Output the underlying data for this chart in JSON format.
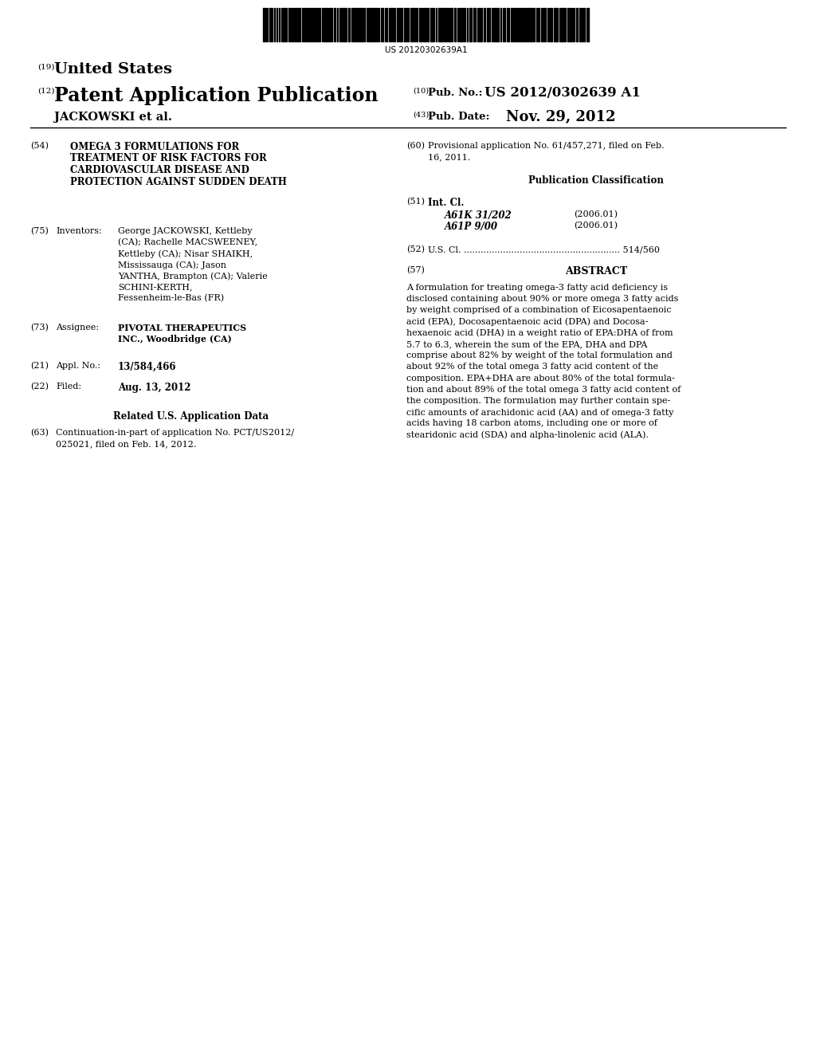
{
  "bg_color": "#ffffff",
  "barcode_text": "US 20120302639A1",
  "label_19": "(19)",
  "united_states": "United States",
  "label_12": "(12)",
  "patent_app_pub": "Patent Application Publication",
  "label_10": "(10)",
  "pub_no_label": "Pub. No.:",
  "pub_no_value": "US 2012/0302639 A1",
  "applicant_name": "JACKOWSKI et al.",
  "label_43": "(43)",
  "pub_date_label": "Pub. Date:",
  "pub_date_value": "Nov. 29, 2012",
  "label_54": "(54)",
  "title_lines": [
    "OMEGA 3 FORMULATIONS FOR",
    "TREATMENT OF RISK FACTORS FOR",
    "CARDIOVASCULAR DISEASE AND",
    "PROTECTION AGAINST SUDDEN DEATH"
  ],
  "label_75": "(75)",
  "inventors_label": "Inventors:",
  "inventors_lines": [
    "George JACKOWSKI, Kettleby",
    "(CA); Rachelle MACSWEENEY,",
    "Kettleby (CA); Nisar SHAIKH,",
    "Mississauga (CA); Jason",
    "YANTHA, Brampton (CA); Valerie",
    "SCHINI-KERTH,",
    "Fessenheim-le-Bas (FR)"
  ],
  "label_73": "(73)",
  "assignee_label": "Assignee:",
  "assignee_line1": "PIVOTAL THERAPEUTICS",
  "assignee_line2": "INC., Woodbridge (CA)",
  "label_21": "(21)",
  "appl_no_label": "Appl. No.:",
  "appl_no_value": "13/584,466",
  "label_22": "(22)",
  "filed_label": "Filed:",
  "filed_value": "Aug. 13, 2012",
  "related_us_label": "Related U.S. Application Data",
  "label_63": "(63)",
  "continuation_line1": "Continuation-in-part of application No. PCT/US2012/",
  "continuation_line2": "025021, filed on Feb. 14, 2012.",
  "label_60": "(60)",
  "prov_line1": "Provisional application No. 61/457,271, filed on Feb.",
  "prov_line2": "16, 2011.",
  "pub_class_label": "Publication Classification",
  "label_51": "(51)",
  "int_cl_label": "Int. Cl.",
  "int_cl_1": "A61K 31/202",
  "int_cl_1_year": "(2006.01)",
  "int_cl_2": "A61P 9/00",
  "int_cl_2_year": "(2006.01)",
  "label_52": "(52)",
  "us_cl_text": "U.S. Cl. ........................................................ 514/560",
  "label_57": "(57)",
  "abstract_label": "ABSTRACT",
  "abstract_lines": [
    "A formulation for treating omega-3 fatty acid deficiency is",
    "disclosed containing about 90% or more omega 3 fatty acids",
    "by weight comprised of a combination of Eicosapentaenoic",
    "acid (EPA), Docosapentaenoic acid (DPA) and Docosa-",
    "hexaenoic acid (DHA) in a weight ratio of EPA:DHA of from",
    "5.7 to 6.3, wherein the sum of the EPA, DHA and DPA",
    "comprise about 82% by weight of the total formulation and",
    "about 92% of the total omega 3 fatty acid content of the",
    "composition. EPA+DHA are about 80% of the total formula-",
    "tion and about 89% of the total omega 3 fatty acid content of",
    "the composition. The formulation may further contain spe-",
    "cific amounts of arachidonic acid (AA) and of omega-3 fatty",
    "acids having 18 carbon atoms, including one or more of",
    "stearidonic acid (SDA) and alpha-linolenic acid (ALA)."
  ]
}
